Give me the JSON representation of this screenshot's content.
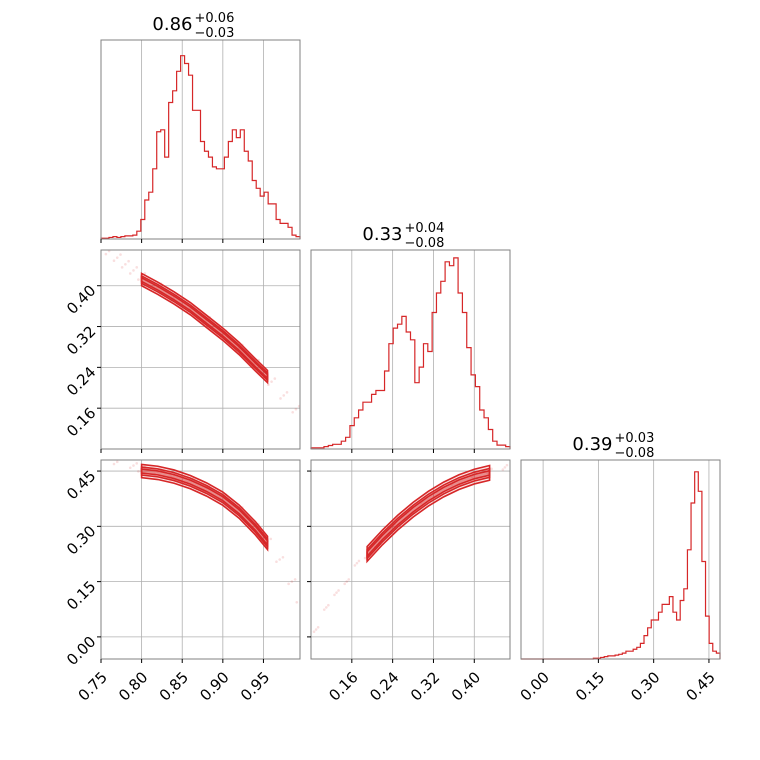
{
  "chart_data": {
    "type": "corner",
    "color": "#d62728",
    "parameters": [
      {
        "title_value": "0.86",
        "title_plus": "+0.06",
        "title_minus": "−0.03",
        "range": [
          0.75,
          0.995
        ],
        "ticks": [
          {
            "v": 0.75,
            "label": "0.75"
          },
          {
            "v": 0.8,
            "label": "0.80"
          },
          {
            "v": 0.85,
            "label": "0.85"
          },
          {
            "v": 0.9,
            "label": "0.90"
          },
          {
            "v": 0.95,
            "label": "0.95"
          }
        ],
        "hist": [
          0.004,
          0.004,
          0.008,
          0.012,
          0.008,
          0.012,
          0.016,
          0.016,
          0.02,
          0.04,
          0.1,
          0.2,
          0.24,
          0.36,
          0.55,
          0.56,
          0.42,
          0.7,
          0.76,
          0.86,
          0.94,
          0.9,
          0.84,
          0.66,
          0.66,
          0.5,
          0.45,
          0.42,
          0.37,
          0.36,
          0.36,
          0.42,
          0.5,
          0.56,
          0.52,
          0.56,
          0.45,
          0.4,
          0.3,
          0.26,
          0.22,
          0.24,
          0.18,
          0.18,
          0.1,
          0.08,
          0.08,
          0.06,
          0.02,
          0.012
        ]
      },
      {
        "title_value": "0.33",
        "title_plus": "+0.04",
        "title_minus": "−0.08",
        "range": [
          0.08,
          0.47
        ],
        "ticks": [
          {
            "v": 0.16,
            "label": "0.16"
          },
          {
            "v": 0.24,
            "label": "0.24"
          },
          {
            "v": 0.32,
            "label": "0.32"
          },
          {
            "v": 0.4,
            "label": "0.40"
          }
        ],
        "hist": [
          0.006,
          0.006,
          0.006,
          0.012,
          0.018,
          0.024,
          0.024,
          0.04,
          0.06,
          0.12,
          0.16,
          0.2,
          0.24,
          0.24,
          0.28,
          0.3,
          0.3,
          0.4,
          0.54,
          0.62,
          0.64,
          0.68,
          0.6,
          0.56,
          0.34,
          0.42,
          0.54,
          0.5,
          0.7,
          0.8,
          0.86,
          0.96,
          0.94,
          0.98,
          0.8,
          0.7,
          0.52,
          0.38,
          0.32,
          0.2,
          0.16,
          0.1,
          0.04,
          0.02,
          0.02,
          0.012
        ]
      },
      {
        "title_value": "0.39",
        "title_plus": "+0.03",
        "title_minus": "−0.08",
        "range": [
          -0.06,
          0.48
        ],
        "ticks": [
          {
            "v": 0.0,
            "label": "0.00"
          },
          {
            "v": 0.15,
            "label": "0.15"
          },
          {
            "v": 0.3,
            "label": "0.30"
          },
          {
            "v": 0.45,
            "label": "0.45"
          }
        ],
        "hist": [
          0,
          0,
          0,
          0,
          0,
          0,
          0,
          0,
          0,
          0,
          0,
          0,
          0,
          0,
          0,
          0,
          0,
          0,
          0,
          0,
          0.004,
          0.004,
          0.008,
          0.012,
          0.016,
          0.016,
          0.02,
          0.024,
          0.03,
          0.04,
          0.04,
          0.05,
          0.06,
          0.08,
          0.12,
          0.16,
          0.2,
          0.2,
          0.24,
          0.28,
          0.28,
          0.32,
          0.24,
          0.2,
          0.3,
          0.36,
          0.56,
          0.8,
          0.96,
          0.86,
          0.5,
          0.22,
          0.08,
          0.04,
          0.03
        ]
      }
    ],
    "pairs": [
      {
        "x": 0,
        "y": 1,
        "samples": [
          [
            0.75,
            0.478
          ],
          [
            0.76,
            0.468
          ],
          [
            0.77,
            0.455
          ],
          [
            0.78,
            0.442
          ],
          [
            0.79,
            0.43
          ],
          [
            0.8,
            0.418
          ],
          [
            0.82,
            0.398
          ],
          [
            0.84,
            0.377
          ],
          [
            0.86,
            0.355
          ],
          [
            0.88,
            0.332
          ],
          [
            0.9,
            0.306
          ],
          [
            0.92,
            0.278
          ],
          [
            0.94,
            0.248
          ],
          [
            0.96,
            0.212
          ],
          [
            0.975,
            0.185
          ],
          [
            0.99,
            0.158
          ]
        ],
        "ridge": [
          [
            0.8,
            0.412
          ],
          [
            0.82,
            0.395
          ],
          [
            0.84,
            0.376
          ],
          [
            0.86,
            0.355
          ],
          [
            0.88,
            0.33
          ],
          [
            0.9,
            0.305
          ],
          [
            0.92,
            0.277
          ],
          [
            0.94,
            0.245
          ],
          [
            0.955,
            0.222
          ]
        ],
        "width": 0.012
      },
      {
        "x": 0,
        "y": 2,
        "samples": [
          [
            0.75,
            0.48
          ],
          [
            0.77,
            0.475
          ],
          [
            0.79,
            0.465
          ],
          [
            0.8,
            0.455
          ],
          [
            0.82,
            0.448
          ],
          [
            0.84,
            0.44
          ],
          [
            0.86,
            0.425
          ],
          [
            0.88,
            0.405
          ],
          [
            0.9,
            0.38
          ],
          [
            0.92,
            0.345
          ],
          [
            0.94,
            0.3
          ],
          [
            0.955,
            0.26
          ],
          [
            0.97,
            0.21
          ],
          [
            0.985,
            0.15
          ],
          [
            0.995,
            0.1
          ]
        ],
        "ridge": [
          [
            0.8,
            0.45
          ],
          [
            0.82,
            0.445
          ],
          [
            0.84,
            0.435
          ],
          [
            0.86,
            0.42
          ],
          [
            0.88,
            0.4
          ],
          [
            0.9,
            0.375
          ],
          [
            0.92,
            0.34
          ],
          [
            0.94,
            0.295
          ],
          [
            0.955,
            0.255
          ]
        ],
        "width": 0.018
      },
      {
        "x": 1,
        "y": 2,
        "samples": [
          [
            0.09,
            0.02
          ],
          [
            0.11,
            0.08
          ],
          [
            0.13,
            0.12
          ],
          [
            0.15,
            0.15
          ],
          [
            0.17,
            0.2
          ],
          [
            0.19,
            0.22
          ],
          [
            0.21,
            0.25
          ],
          [
            0.24,
            0.3
          ],
          [
            0.27,
            0.34
          ],
          [
            0.3,
            0.37
          ],
          [
            0.33,
            0.4
          ],
          [
            0.36,
            0.42
          ],
          [
            0.4,
            0.44
          ],
          [
            0.43,
            0.45
          ],
          [
            0.46,
            0.46
          ]
        ],
        "ridge": [
          [
            0.19,
            0.225
          ],
          [
            0.22,
            0.27
          ],
          [
            0.25,
            0.31
          ],
          [
            0.28,
            0.345
          ],
          [
            0.31,
            0.375
          ],
          [
            0.34,
            0.4
          ],
          [
            0.37,
            0.42
          ],
          [
            0.4,
            0.435
          ],
          [
            0.43,
            0.445
          ]
        ],
        "width": 0.02
      }
    ]
  }
}
